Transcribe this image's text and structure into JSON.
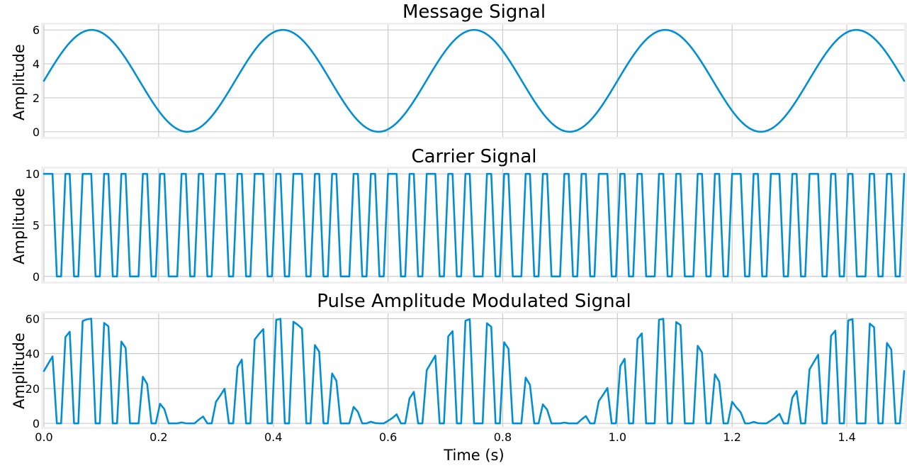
{
  "colors": {
    "series": "#008fd5",
    "grid": "#cbcbcb",
    "frame": "#f0f0f0"
  },
  "chart_data": [
    {
      "type": "line",
      "title": "Message Signal",
      "ylabel": "Amplitude",
      "xlabel": "",
      "xlim": [
        0,
        1.5
      ],
      "ylim": [
        -0.3,
        6.3
      ],
      "yticks": [
        "0",
        "2",
        "4",
        "6"
      ],
      "xticks": [
        0.0,
        0.2,
        0.4,
        0.6,
        0.8,
        1.0,
        1.2,
        1.4
      ],
      "show_xticklabels": false,
      "grid": true,
      "series": [
        {
          "function": "3 + 3*sin(2*pi*3*t)",
          "t_range": [
            0,
            1.5
          ],
          "samples": 600
        }
      ]
    },
    {
      "type": "line",
      "title": "Carrier Signal",
      "ylabel": "Amplitude",
      "xlabel": "",
      "xlim": [
        0,
        1.5
      ],
      "ylim": [
        -0.5,
        10.5
      ],
      "yticks": [
        "0",
        "5",
        "10"
      ],
      "xticks": [
        0.0,
        0.2,
        0.4,
        0.6,
        0.8,
        1.0,
        1.2,
        1.4
      ],
      "show_xticklabels": false,
      "grid": true,
      "series": [
        {
          "function": "square wave, 30 Hz, 0 to 10, 50% duty",
          "high": 10,
          "low": 0,
          "frequency_hz": 30,
          "sample_step_s": 0.0075
        }
      ]
    },
    {
      "type": "line",
      "title": "Pulse Amplitude Modulated Signal",
      "ylabel": "Amplitude",
      "xlabel": "Time (s)",
      "xlim": [
        0,
        1.5
      ],
      "ylim": [
        -2,
        63
      ],
      "yticks": [
        "0",
        "20",
        "40",
        "60"
      ],
      "xticks": [
        0.0,
        0.2,
        0.4,
        0.6,
        0.8,
        1.0,
        1.2,
        1.4
      ],
      "xticklabels": [
        "0.0",
        "0.2",
        "0.4",
        "0.6",
        "0.8",
        "1.0",
        "1.2",
        "1.4"
      ],
      "show_xticklabels": true,
      "grid": true,
      "series": [
        {
          "function": "message * carrier",
          "sample_step_s": 0.0075,
          "peak": 60
        }
      ]
    }
  ]
}
